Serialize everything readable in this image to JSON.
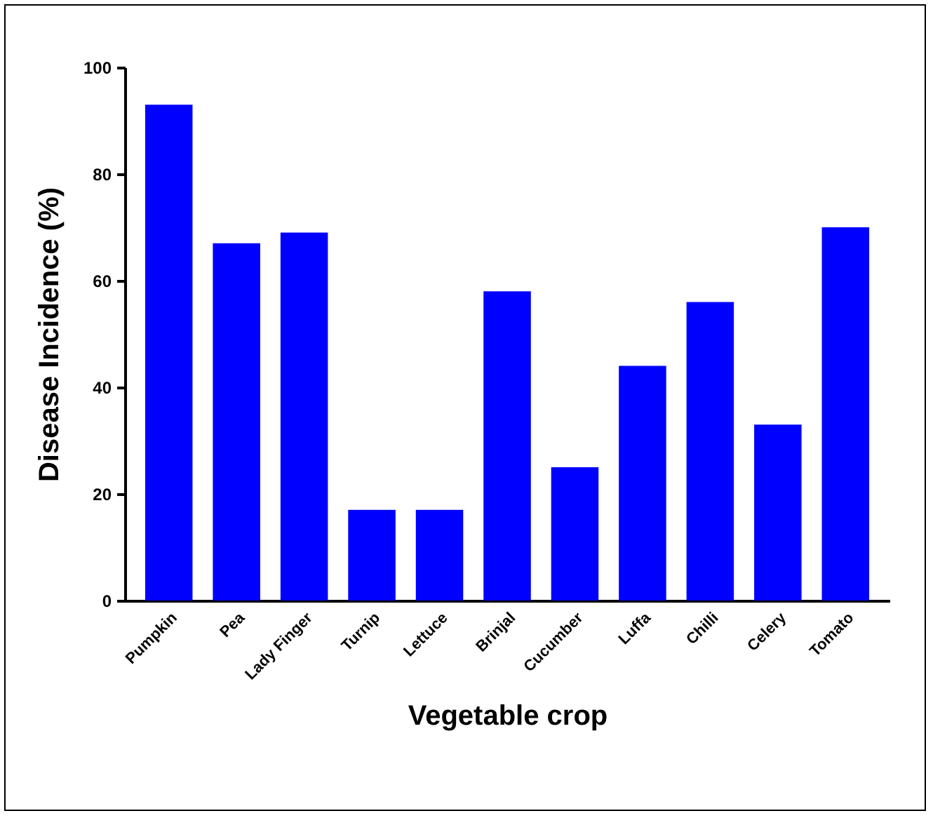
{
  "chart_data": {
    "type": "bar",
    "xlabel": "Vegetable crop",
    "ylabel": "Disease Incidence (%)",
    "categories": [
      "Pumpkin",
      "Pea",
      "Lady Finger",
      "Turnip",
      "Lettuce",
      "Brinjal",
      "Cucumber",
      "Luffa",
      "Chilli",
      "Celery",
      "Tomato"
    ],
    "values": [
      93,
      67,
      69,
      17,
      17,
      58,
      25,
      44,
      56,
      33,
      70
    ],
    "color": "#0000ff",
    "ylim": [
      0,
      100
    ],
    "yticks": [
      0,
      20,
      40,
      60,
      80,
      100
    ],
    "grid": false
  }
}
